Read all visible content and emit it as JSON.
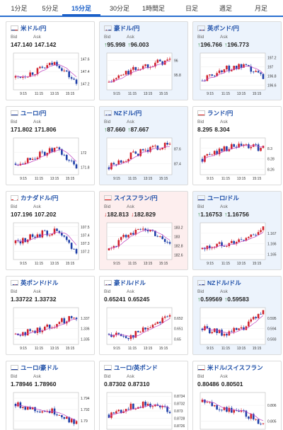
{
  "tabs": [
    {
      "label": "1分足",
      "active": false
    },
    {
      "label": "5分足",
      "active": false
    },
    {
      "label": "15分足",
      "active": true
    },
    {
      "label": "30分足",
      "active": false
    },
    {
      "label": "1時間足",
      "active": false
    },
    {
      "label": "日足",
      "active": false
    },
    {
      "label": "週足",
      "active": false
    },
    {
      "label": "月足",
      "active": false
    }
  ],
  "bid_label": "Bid",
  "ask_label": "Ask",
  "cards": [
    {
      "pair": "米ドル/円",
      "bid": "147.140",
      "ask": "147.142",
      "trend": "none",
      "flag": "us",
      "yticks": [
        "147.6",
        "147.4",
        "147.2"
      ],
      "xticks": [
        "9:15",
        "11:15",
        "13:15",
        "15:15"
      ],
      "chart_data": {
        "type": "line",
        "x": [
          "9:15",
          "11:15",
          "13:15",
          "15:15"
        ],
        "values": [
          147.3,
          147.4,
          147.55,
          147.2
        ],
        "ylim": [
          147.1,
          147.7
        ]
      }
    },
    {
      "pair": "豪ドル/円",
      "bid": "95.998",
      "ask": "96.003",
      "trend": "up",
      "flag": "au",
      "yticks": [
        "96",
        "95.8"
      ],
      "xticks": [
        "9:15",
        "11:15",
        "13:15",
        "15:15"
      ],
      "chart_data": {
        "type": "line",
        "x": [
          "9:15",
          "11:15",
          "13:15",
          "15:15"
        ],
        "values": [
          95.7,
          95.85,
          95.95,
          96.0
        ],
        "ylim": [
          95.6,
          96.1
        ]
      }
    },
    {
      "pair": "英ポンド/円",
      "bid": "196.766",
      "ask": "196.773",
      "trend": "up",
      "flag": "gb",
      "yticks": [
        "197.2",
        "197",
        "196.8",
        "196.6"
      ],
      "xticks": [
        "9:15",
        "11:15",
        "13:15",
        "15:15"
      ],
      "chart_data": {
        "type": "line",
        "x": [
          "9:15",
          "11:15",
          "13:15",
          "15:15"
        ],
        "values": [
          196.7,
          196.95,
          197.0,
          196.8
        ],
        "ylim": [
          196.5,
          197.3
        ]
      }
    },
    {
      "pair": "ユーロ/円",
      "bid": "171.802",
      "ask": "171.806",
      "trend": "none",
      "flag": "eu",
      "yticks": [
        "172",
        "171.8"
      ],
      "xticks": [
        "9:15",
        "11:15",
        "13:15",
        "15:15"
      ],
      "chart_data": {
        "type": "line",
        "x": [
          "9:15",
          "11:15",
          "13:15",
          "15:15"
        ],
        "values": [
          171.85,
          171.95,
          172.05,
          171.8
        ],
        "ylim": [
          171.7,
          172.2
        ]
      }
    },
    {
      "pair": "NZドル/円",
      "bid": "87.660",
      "ask": "87.667",
      "trend": "up",
      "flag": "nz",
      "yticks": [
        "87.6",
        "87.4"
      ],
      "xticks": [
        "9:15",
        "11:15",
        "13:15",
        "15:15"
      ],
      "chart_data": {
        "type": "line",
        "x": [
          "9:15",
          "11:15",
          "13:15",
          "15:15"
        ],
        "values": [
          87.35,
          87.5,
          87.6,
          87.66
        ],
        "ylim": [
          87.25,
          87.75
        ]
      }
    },
    {
      "pair": "ランド/円",
      "bid": "8.295",
      "ask": "8.304",
      "trend": "none",
      "flag": "za",
      "yticks": [
        "8.3",
        "8.28",
        "8.26"
      ],
      "xticks": [
        "9:15",
        "11:15",
        "13:15",
        "15:15"
      ],
      "chart_data": {
        "type": "line",
        "x": [
          "9:15",
          "11:15",
          "13:15",
          "15:15"
        ],
        "values": [
          8.28,
          8.3,
          8.305,
          8.3
        ],
        "ylim": [
          8.25,
          8.32
        ]
      }
    },
    {
      "pair": "カナダドル/円",
      "bid": "107.196",
      "ask": "107.202",
      "trend": "none",
      "flag": "ca",
      "yticks": [
        "107.5",
        "107.4",
        "107.3",
        "107.2"
      ],
      "xticks": [
        "9:15",
        "11:15",
        "13:15",
        "15:15"
      ],
      "chart_data": {
        "type": "line",
        "x": [
          "9:15",
          "11:15",
          "13:15",
          "15:15"
        ],
        "values": [
          107.3,
          107.4,
          107.45,
          107.2
        ],
        "ylim": [
          107.1,
          107.55
        ]
      }
    },
    {
      "pair": "スイスフラン/円",
      "bid": "182.813",
      "ask": "182.829",
      "trend": "down",
      "flag": "ch",
      "yticks": [
        "183.2",
        "183",
        "182.8",
        "182.6"
      ],
      "xticks": [
        "9:15",
        "11:15",
        "13:15",
        "15:15"
      ],
      "chart_data": {
        "type": "line",
        "x": [
          "9:15",
          "11:15",
          "13:15",
          "15:15"
        ],
        "values": [
          182.7,
          183.1,
          183.15,
          182.85
        ],
        "ylim": [
          182.5,
          183.3
        ]
      }
    },
    {
      "pair": "ユーロ/ドル",
      "bid": "1.16753",
      "ask": "1.16756",
      "trend": "up",
      "flag": "eu",
      "yticks": [
        "1.167",
        "1.166",
        "1.165"
      ],
      "xticks": [
        "9:15",
        "11:15",
        "13:15",
        "15:15"
      ],
      "chart_data": {
        "type": "line",
        "x": [
          "9:15",
          "11:15",
          "13:15",
          "15:15"
        ],
        "values": [
          1.1655,
          1.166,
          1.1663,
          1.1675
        ],
        "ylim": [
          1.1645,
          1.168
        ]
      }
    },
    {
      "pair": "英ポンド/ドル",
      "bid": "1.33722",
      "ask": "1.33732",
      "trend": "none",
      "flag": "gb",
      "yticks": [
        "1.337",
        "1.336",
        "1.335"
      ],
      "xticks": [
        "9:15",
        "11:15",
        "13:15",
        "15:15"
      ],
      "chart_data": {
        "type": "line",
        "x": [
          "9:15",
          "11:15",
          "13:15",
          "15:15"
        ],
        "values": [
          1.3355,
          1.3358,
          1.3365,
          1.3372
        ],
        "ylim": [
          1.3345,
          1.338
        ]
      }
    },
    {
      "pair": "豪ドル/ドル",
      "bid": "0.65241",
      "ask": "0.65245",
      "trend": "none",
      "flag": "au",
      "yticks": [
        "0.652",
        "0.651",
        "0.65"
      ],
      "xticks": [
        "9:15",
        "11:15",
        "13:15",
        "15:15"
      ],
      "chart_data": {
        "type": "line",
        "x": [
          "9:15",
          "11:15",
          "13:15",
          "15:15"
        ],
        "values": [
          0.6505,
          0.6502,
          0.6512,
          0.6524
        ],
        "ylim": [
          0.6495,
          0.653
        ]
      }
    },
    {
      "pair": "NZドル/ドル",
      "bid": "0.59569",
      "ask": "0.59583",
      "trend": "up",
      "flag": "nz",
      "yticks": [
        "0.595",
        "0.594",
        "0.593"
      ],
      "xticks": [
        "9:15",
        "11:15",
        "13:15",
        "15:15"
      ],
      "chart_data": {
        "type": "line",
        "x": [
          "9:15",
          "11:15",
          "13:15",
          "15:15"
        ],
        "values": [
          0.594,
          0.5935,
          0.594,
          0.5957
        ],
        "ylim": [
          0.5925,
          0.596
        ]
      }
    },
    {
      "pair": "ユーロ/豪ドル",
      "bid": "1.78946",
      "ask": "1.78960",
      "trend": "none",
      "flag": "eu",
      "yticks": [
        "1.794",
        "1.792",
        "1.79"
      ],
      "xticks": [
        "9:15",
        "11:15",
        "13:15",
        "15:15"
      ],
      "chart_data": {
        "type": "line",
        "x": [
          "9:15",
          "11:15",
          "13:15",
          "15:15"
        ],
        "values": [
          1.793,
          1.792,
          1.7915,
          1.7895
        ],
        "ylim": [
          1.7885,
          1.795
        ]
      }
    },
    {
      "pair": "ユーロ/英ポンド",
      "bid": "0.87302",
      "ask": "0.87310",
      "trend": "none",
      "flag": "eu",
      "yticks": [
        "0.8734",
        "0.8732",
        "0.873",
        "0.8728",
        "0.8726"
      ],
      "xticks": [
        "9:15",
        "11:15",
        "13:15",
        "15:15"
      ],
      "chart_data": {
        "type": "line",
        "x": [
          "9:15",
          "11:15",
          "13:15",
          "15:15"
        ],
        "values": [
          0.8729,
          0.8731,
          0.8732,
          0.873
        ],
        "ylim": [
          0.8725,
          0.8735
        ]
      }
    },
    {
      "pair": "米ドル/スイスフラン",
      "bid": "0.80486",
      "ask": "0.80501",
      "trend": "none",
      "flag": "us",
      "yticks": [
        "0.806",
        "0.805"
      ],
      "xticks": [
        "9:15",
        "11:15",
        "13:15",
        "15:15"
      ],
      "chart_data": {
        "type": "line",
        "x": [
          "9:15",
          "11:15",
          "13:15",
          "15:15"
        ],
        "values": [
          0.8062,
          0.8058,
          0.8055,
          0.8049
        ],
        "ylim": [
          0.8045,
          0.8068
        ]
      }
    }
  ],
  "colors": {
    "up_candle": "#d0202a",
    "down_candle": "#1f3fa8",
    "ma_line": "#c040c0",
    "up_bg": "#ecf3fc",
    "down_bg": "#fdeeee",
    "up_arrow": "#1a7f2a",
    "down_arrow": "#d02020",
    "accent": "#1a5fc8"
  }
}
